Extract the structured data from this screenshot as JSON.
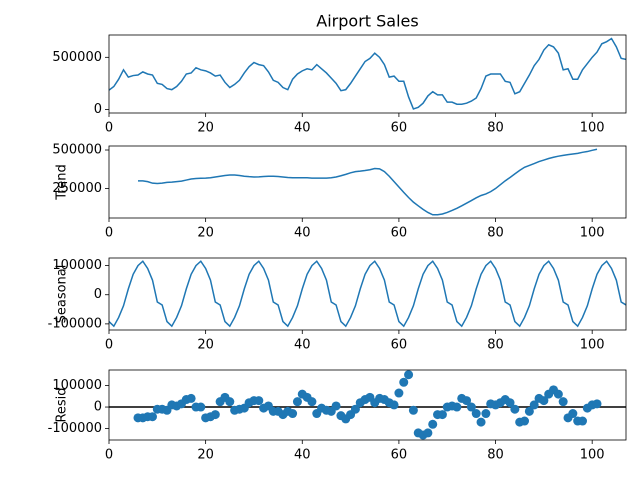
{
  "chart_data": [
    {
      "type": "line",
      "title": "Airport Sales",
      "color": "#1f77b4",
      "x": [
        0,
        1,
        2,
        3,
        4,
        5,
        6,
        7,
        8,
        9,
        10,
        11,
        12,
        13,
        14,
        15,
        16,
        17,
        18,
        19,
        20,
        21,
        22,
        23,
        24,
        25,
        26,
        27,
        28,
        29,
        30,
        31,
        32,
        33,
        34,
        35,
        36,
        37,
        38,
        39,
        40,
        41,
        42,
        43,
        44,
        45,
        46,
        47,
        48,
        49,
        50,
        51,
        52,
        53,
        54,
        55,
        56,
        57,
        58,
        59,
        60,
        61,
        62,
        63,
        64,
        65,
        66,
        67,
        68,
        69,
        70,
        71,
        72,
        73,
        74,
        75,
        76,
        77,
        78,
        79,
        80,
        81,
        82,
        83,
        84,
        85,
        86,
        87,
        88,
        89,
        90,
        91,
        92,
        93,
        94,
        95,
        96,
        97,
        98,
        99,
        100,
        101,
        102,
        103,
        104,
        105,
        106,
        107
      ],
      "values": [
        185000,
        220000,
        290000,
        380000,
        310000,
        325000,
        330000,
        360000,
        340000,
        330000,
        250000,
        240000,
        200000,
        190000,
        220000,
        270000,
        340000,
        350000,
        400000,
        380000,
        370000,
        350000,
        320000,
        330000,
        260000,
        210000,
        240000,
        280000,
        350000,
        410000,
        450000,
        430000,
        420000,
        360000,
        280000,
        260000,
        210000,
        190000,
        290000,
        340000,
        370000,
        390000,
        380000,
        430000,
        390000,
        350000,
        300000,
        250000,
        180000,
        190000,
        250000,
        320000,
        390000,
        460000,
        490000,
        540000,
        500000,
        430000,
        310000,
        320000,
        270000,
        270000,
        120000,
        5000,
        20000,
        60000,
        130000,
        170000,
        140000,
        140000,
        70000,
        70000,
        50000,
        50000,
        60000,
        80000,
        110000,
        200000,
        320000,
        340000,
        340000,
        340000,
        270000,
        260000,
        150000,
        170000,
        250000,
        330000,
        420000,
        480000,
        570000,
        620000,
        600000,
        540000,
        380000,
        390000,
        290000,
        290000,
        380000,
        440000,
        500000,
        550000,
        630000,
        650000,
        680000,
        600000,
        490000,
        480000
      ],
      "xlim": [
        0,
        107
      ],
      "xticks": [
        0,
        20,
        40,
        60,
        80,
        100
      ],
      "ylim": [
        -34000,
        714000
      ],
      "yticks": [
        0,
        500000
      ]
    },
    {
      "type": "line",
      "ylabel": "Trend",
      "color": "#1f77b4",
      "x": [
        6,
        7,
        8,
        9,
        10,
        11,
        12,
        13,
        14,
        15,
        16,
        17,
        18,
        19,
        20,
        21,
        22,
        23,
        24,
        25,
        26,
        27,
        28,
        29,
        30,
        31,
        32,
        33,
        34,
        35,
        36,
        37,
        38,
        39,
        40,
        41,
        42,
        43,
        44,
        45,
        46,
        47,
        48,
        49,
        50,
        51,
        52,
        53,
        54,
        55,
        56,
        57,
        58,
        59,
        60,
        61,
        62,
        63,
        64,
        65,
        66,
        67,
        68,
        69,
        70,
        71,
        72,
        73,
        74,
        75,
        76,
        77,
        78,
        79,
        80,
        81,
        82,
        83,
        84,
        85,
        86,
        87,
        88,
        89,
        90,
        91,
        92,
        93,
        94,
        95,
        96,
        97,
        98,
        99,
        100,
        101
      ],
      "values": [
        300000,
        300000,
        295000,
        285000,
        283000,
        285000,
        290000,
        292000,
        295000,
        298000,
        305000,
        312000,
        315000,
        317000,
        318000,
        320000,
        325000,
        330000,
        335000,
        338000,
        338000,
        335000,
        330000,
        327000,
        325000,
        326000,
        328000,
        330000,
        330000,
        328000,
        325000,
        322000,
        320000,
        320000,
        320000,
        320000,
        318000,
        318000,
        318000,
        318000,
        320000,
        325000,
        333000,
        342000,
        352000,
        360000,
        363000,
        367000,
        372000,
        380000,
        378000,
        360000,
        330000,
        295000,
        260000,
        225000,
        192000,
        162000,
        138000,
        115000,
        95000,
        80000,
        80000,
        85000,
        95000,
        108000,
        122000,
        138000,
        155000,
        172000,
        190000,
        205000,
        215000,
        230000,
        250000,
        275000,
        300000,
        322000,
        345000,
        368000,
        388000,
        400000,
        412000,
        425000,
        435000,
        445000,
        453000,
        460000,
        465000,
        470000,
        474000,
        478000,
        485000,
        490000,
        498000,
        505000
      ],
      "xlim": [
        0,
        107
      ],
      "xticks": [
        0,
        20,
        40,
        60,
        80,
        100
      ],
      "ylim": [
        59000,
        526000
      ],
      "yticks": [
        250000,
        500000
      ]
    },
    {
      "type": "line",
      "ylabel": "Seasonal",
      "color": "#1f77b4",
      "x": [
        0,
        1,
        2,
        3,
        4,
        5,
        6,
        7,
        8,
        9,
        10,
        11,
        12,
        13,
        14,
        15,
        16,
        17,
        18,
        19,
        20,
        21,
        22,
        23,
        24,
        25,
        26,
        27,
        28,
        29,
        30,
        31,
        32,
        33,
        34,
        35,
        36,
        37,
        38,
        39,
        40,
        41,
        42,
        43,
        44,
        45,
        46,
        47,
        48,
        49,
        50,
        51,
        52,
        53,
        54,
        55,
        56,
        57,
        58,
        59,
        60,
        61,
        62,
        63,
        64,
        65,
        66,
        67,
        68,
        69,
        70,
        71,
        72,
        73,
        74,
        75,
        76,
        77,
        78,
        79,
        80,
        81,
        82,
        83,
        84,
        85,
        86,
        87,
        88,
        89,
        90,
        91,
        92,
        93,
        94,
        95,
        96,
        97,
        98,
        99,
        100,
        101,
        102,
        103,
        104,
        105,
        106,
        107
      ],
      "values": [
        -92000,
        -108000,
        -78000,
        -38000,
        20000,
        70000,
        100000,
        115000,
        90000,
        50000,
        -25000,
        -35000,
        -92000,
        -108000,
        -78000,
        -38000,
        20000,
        70000,
        100000,
        115000,
        90000,
        50000,
        -25000,
        -35000,
        -92000,
        -108000,
        -78000,
        -38000,
        20000,
        70000,
        100000,
        115000,
        90000,
        50000,
        -25000,
        -35000,
        -92000,
        -108000,
        -78000,
        -38000,
        20000,
        70000,
        100000,
        115000,
        90000,
        50000,
        -25000,
        -35000,
        -92000,
        -108000,
        -78000,
        -38000,
        20000,
        70000,
        100000,
        115000,
        90000,
        50000,
        -25000,
        -35000,
        -92000,
        -108000,
        -78000,
        -38000,
        20000,
        70000,
        100000,
        115000,
        90000,
        50000,
        -25000,
        -35000,
        -92000,
        -108000,
        -78000,
        -38000,
        20000,
        70000,
        100000,
        115000,
        90000,
        50000,
        -25000,
        -35000,
        -92000,
        -108000,
        -78000,
        -38000,
        20000,
        70000,
        100000,
        115000,
        90000,
        50000,
        -25000,
        -35000,
        -92000,
        -108000,
        -78000,
        -38000,
        20000,
        70000,
        100000,
        115000,
        90000,
        50000,
        -25000,
        -35000
      ],
      "xlim": [
        0,
        107
      ],
      "xticks": [
        0,
        20,
        40,
        60,
        80,
        100
      ],
      "ylim": [
        -121000,
        126000
      ],
      "yticks": [
        -100000,
        0,
        100000
      ]
    },
    {
      "type": "scatter",
      "ylabel": "Resid",
      "color": "#1f77b4",
      "hline": 0,
      "hline_color": "#000000",
      "x": [
        6,
        7,
        8,
        9,
        10,
        11,
        12,
        13,
        14,
        15,
        16,
        17,
        18,
        19,
        20,
        21,
        22,
        23,
        24,
        25,
        26,
        27,
        28,
        29,
        30,
        31,
        32,
        33,
        34,
        35,
        36,
        37,
        38,
        39,
        40,
        41,
        42,
        43,
        44,
        45,
        46,
        47,
        48,
        49,
        50,
        51,
        52,
        53,
        54,
        55,
        56,
        57,
        58,
        59,
        60,
        61,
        62,
        63,
        64,
        65,
        66,
        67,
        68,
        69,
        70,
        71,
        72,
        73,
        74,
        75,
        76,
        77,
        78,
        79,
        80,
        81,
        82,
        83,
        84,
        85,
        86,
        87,
        88,
        89,
        90,
        91,
        92,
        93,
        94,
        95,
        96,
        97,
        98,
        99,
        100,
        101
      ],
      "values": [
        -50000,
        -50000,
        -45000,
        -45000,
        -10000,
        -10000,
        -15000,
        10000,
        5000,
        15000,
        35000,
        40000,
        0,
        0,
        -50000,
        -45000,
        -35000,
        25000,
        45000,
        25000,
        -15000,
        -10000,
        -5000,
        20000,
        30000,
        30000,
        -5000,
        5000,
        -20000,
        -20000,
        -35000,
        -20000,
        -30000,
        25000,
        60000,
        45000,
        25000,
        -30000,
        -5000,
        -15000,
        -20000,
        5000,
        -40000,
        -55000,
        -35000,
        -10000,
        20000,
        35000,
        45000,
        20000,
        40000,
        35000,
        20000,
        10000,
        65000,
        115000,
        150000,
        -15000,
        -120000,
        -130000,
        -120000,
        -80000,
        -35000,
        -35000,
        0,
        5000,
        0,
        40000,
        30000,
        0,
        -30000,
        -70000,
        -30000,
        15000,
        10000,
        20000,
        35000,
        20000,
        -10000,
        -70000,
        -65000,
        -20000,
        10000,
        40000,
        30000,
        60000,
        80000,
        60000,
        25000,
        -50000,
        -30000,
        -65000,
        -65000,
        -5000,
        10000,
        15000
      ],
      "xlim": [
        0,
        107
      ],
      "xticks": [
        0,
        20,
        40,
        60,
        80,
        100
      ],
      "ylim": [
        -153000,
        172000
      ],
      "yticks": [
        -100000,
        0,
        100000
      ]
    }
  ]
}
